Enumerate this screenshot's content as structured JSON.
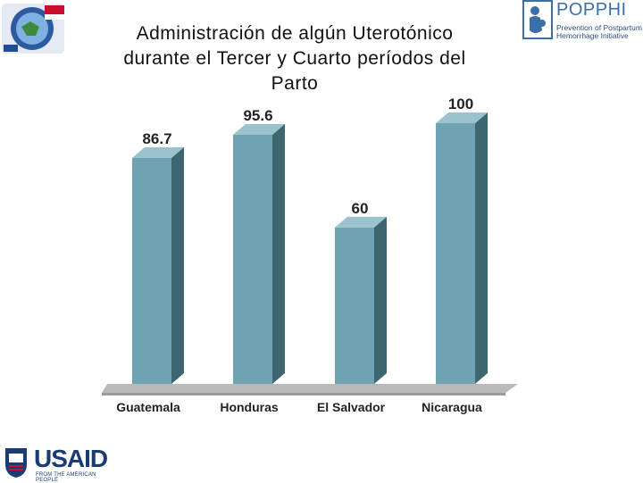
{
  "title_lines": [
    "Administración de algún Uterotónico",
    "durante el Tercer y Cuarto períodos del",
    "Parto"
  ],
  "logos": {
    "popphi_text": "POPPHI",
    "popphi_sub_line1": "Prevention of Postpartum",
    "popphi_sub_line2": "Hemorrhage Initiative",
    "usaid_text": "USAID",
    "usaid_sub": "FROM THE AMERICAN PEOPLE"
  },
  "colors": {
    "bar_front": "#6fa3b3",
    "bar_side": "#3e6670",
    "bar_top": "#9cc2cd",
    "floor": "#b9b9b9",
    "floor_edge": "#9a9a9a"
  },
  "chart_data": {
    "type": "bar",
    "style": "3d-column",
    "categories": [
      "Guatemala",
      "Honduras",
      "El Salvador",
      "Nicaragua"
    ],
    "values": [
      86.7,
      95.6,
      60,
      100
    ],
    "data_labels": [
      "86.7",
      "95.6",
      "60",
      "100"
    ],
    "ylim": [
      0,
      100
    ],
    "grid": false,
    "legend": "none"
  }
}
